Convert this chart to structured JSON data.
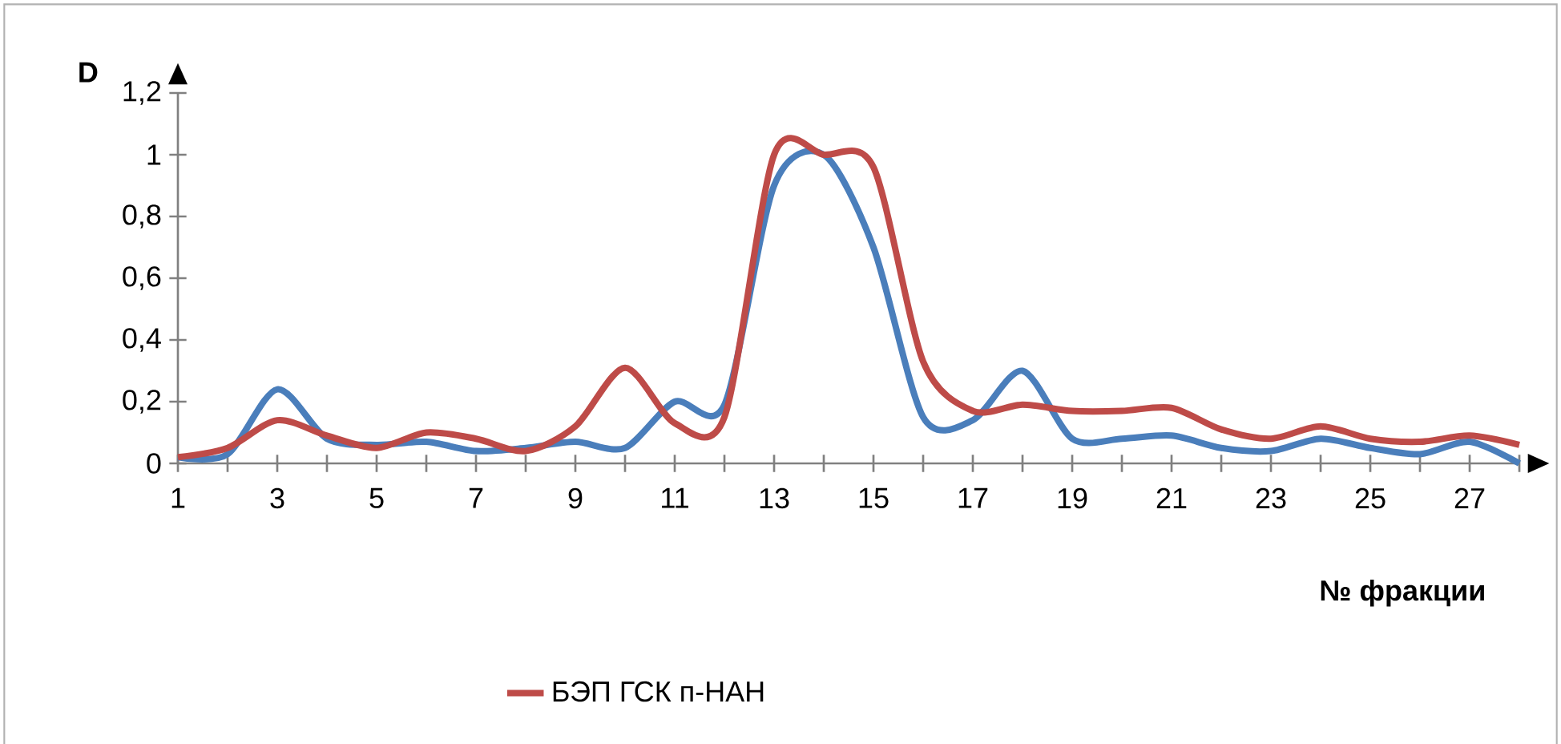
{
  "chart_data": {
    "type": "line",
    "xlabel": "№ фракции",
    "ylabel": "D",
    "categories": [
      "1",
      null,
      "3",
      null,
      "5",
      null,
      "7",
      null,
      "9",
      null,
      "11",
      null,
      "13",
      null,
      "15",
      null,
      "17",
      null,
      "19",
      null,
      "21",
      null,
      "23",
      null,
      "25",
      null,
      "27",
      null
    ],
    "series": [
      {
        "color": "#4a7ebb",
        "values": [
          0.02,
          0.03,
          0.24,
          0.08,
          0.06,
          0.07,
          0.04,
          0.05,
          0.07,
          0.05,
          0.2,
          0.19,
          0.9,
          1.0,
          0.7,
          0.15,
          0.14,
          0.3,
          0.08,
          0.08,
          0.09,
          0.05,
          0.04,
          0.08,
          0.05,
          0.03,
          0.07,
          0.0
        ]
      },
      {
        "name": "БЭП ГСК п-НАН",
        "color": "#be4b48",
        "values": [
          0.02,
          0.05,
          0.14,
          0.09,
          0.05,
          0.1,
          0.08,
          0.04,
          0.12,
          0.31,
          0.13,
          0.15,
          1.0,
          1.0,
          0.96,
          0.33,
          0.17,
          0.19,
          0.17,
          0.17,
          0.18,
          0.11,
          0.08,
          0.12,
          0.08,
          0.07,
          0.09,
          0.06
        ]
      }
    ],
    "ylim": [
      0,
      1.2
    ],
    "yticks": [
      0,
      {
        "value": 0.2,
        "label": "0,2"
      },
      {
        "value": 0.4,
        "label": "0,4"
      },
      {
        "value": 0.6,
        "label": "0,6"
      },
      {
        "value": 0.8,
        "label": "0,8"
      },
      1,
      {
        "value": 1.2,
        "label": "1,2"
      }
    ],
    "legend": "bottom",
    "marker": "none"
  }
}
